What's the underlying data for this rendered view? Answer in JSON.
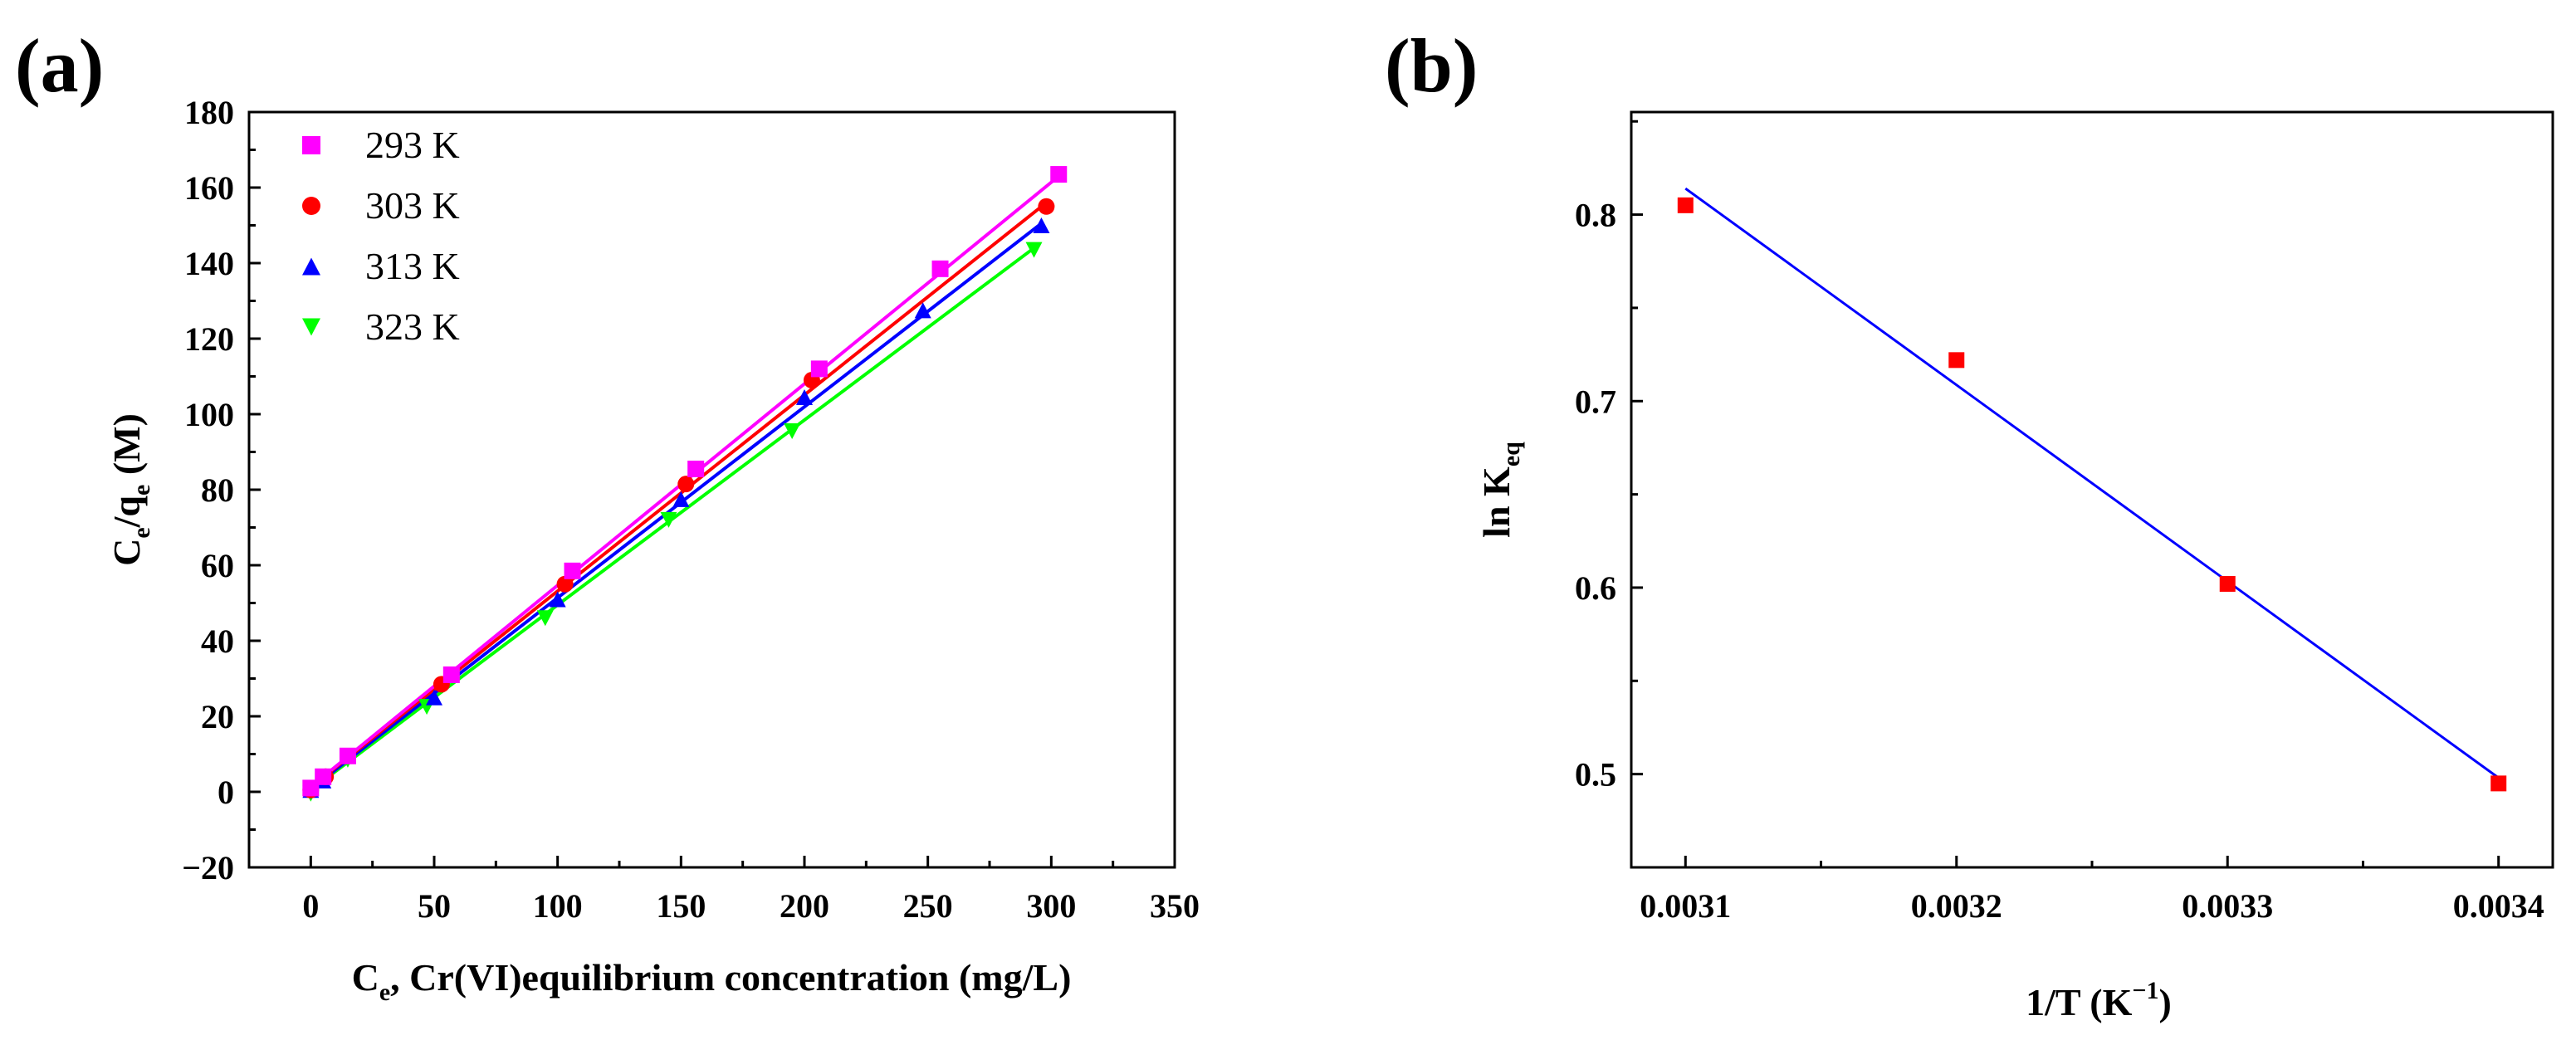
{
  "panel_labels": {
    "a": "(a)",
    "b": "(b)"
  },
  "colors": {
    "293 K": "#ff00ff",
    "303 K": "#ff0000",
    "313 K": "#0000ff",
    "323 K": "#00ff00",
    "fit_b": "#0000ff",
    "points_b": "#ff0000",
    "axis": "#000000"
  },
  "chart_data": [
    {
      "id": "a",
      "type": "scatter",
      "title": "",
      "xlabel": {
        "main": "C",
        "sub": "e",
        "rest": ", Cr(VI)equilibrium concentration (mg/L)"
      },
      "ylabel": {
        "c": "C",
        "c_sub": "e",
        "slash": "/q",
        "q_sub": "e",
        "rest": " (M)"
      },
      "xlim": [
        -25,
        350
      ],
      "ylim": [
        -20,
        180
      ],
      "xticks": [
        0,
        50,
        100,
        150,
        200,
        250,
        300,
        350
      ],
      "yticks": [
        -20,
        0,
        20,
        40,
        60,
        80,
        100,
        120,
        140,
        160,
        180
      ],
      "legend_position": "top-left",
      "series": [
        {
          "name": "293 K",
          "marker": "square",
          "x": [
            0,
            5,
            15,
            57,
            106,
            156,
            206,
            255,
            303
          ],
          "y": [
            1,
            4,
            9.5,
            31,
            58.5,
            85.5,
            112,
            138.5,
            163.5
          ],
          "fit": {
            "x": [
              0,
              303
            ],
            "y": [
              1.3,
              163
            ]
          }
        },
        {
          "name": "303 K",
          "marker": "circle",
          "x": [
            0,
            6,
            53,
            103,
            152,
            203,
            298
          ],
          "y": [
            0.5,
            4,
            28.5,
            55,
            81.5,
            109,
            155
          ],
          "fit": {
            "x": [
              0,
              298
            ],
            "y": [
              1.2,
              156
            ]
          }
        },
        {
          "name": "313 K",
          "marker": "triangle-up",
          "x": [
            0,
            5,
            50,
            100,
            150,
            200,
            248,
            296
          ],
          "y": [
            0.5,
            3,
            25,
            51,
            77.5,
            104.5,
            127.5,
            150
          ],
          "fit": {
            "x": [
              0,
              296
            ],
            "y": [
              0.8,
              150.5
            ]
          }
        },
        {
          "name": "323 K",
          "marker": "triangle-down",
          "x": [
            0,
            15,
            47,
            95,
            145,
            195,
            293
          ],
          "y": [
            -0.5,
            8.5,
            22.5,
            46,
            72,
            95.5,
            143.5
          ],
          "fit": {
            "x": [
              0,
              293
            ],
            "y": [
              0.5,
              144
            ]
          }
        }
      ]
    },
    {
      "id": "b",
      "type": "scatter",
      "title": "",
      "xlabel": {
        "main": "1/T (K",
        "sup": "−1",
        "rest": ")"
      },
      "ylabel": {
        "main": "ln K",
        "sub": "eq"
      },
      "xlim": [
        0.00308,
        0.00342
      ],
      "ylim": [
        0.45,
        0.855
      ],
      "xticks": [
        "0.0031",
        "0.0032",
        "0.0033",
        "0.0034"
      ],
      "yticks": [
        "0.5",
        "0.6",
        "0.7",
        "0.8"
      ],
      "series": [
        {
          "name": "ln Keq",
          "marker": "square",
          "x": [
            0.0031,
            0.0032,
            0.0033,
            0.0034
          ],
          "y": [
            0.805,
            0.722,
            0.602,
            0.495
          ]
        }
      ],
      "fit": {
        "x": [
          0.0031,
          0.0034
        ],
        "y": [
          0.814,
          0.498
        ]
      }
    }
  ]
}
